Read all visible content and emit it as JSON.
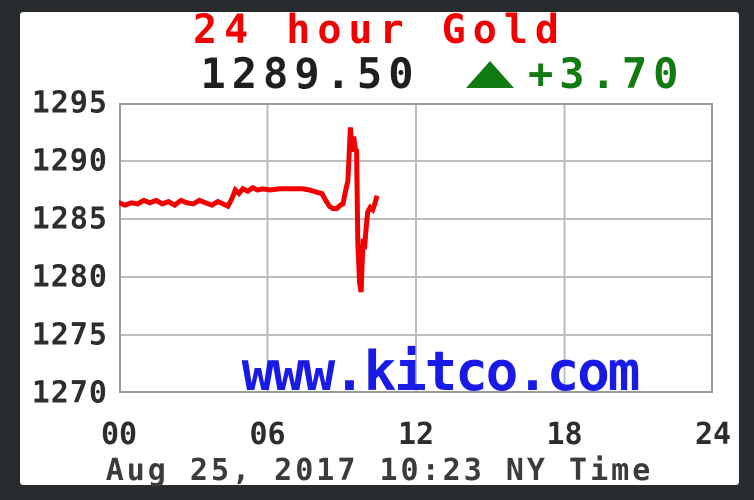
{
  "quote": {
    "price": "1289.50",
    "change": "+3.70",
    "direction": "up"
  },
  "chart_data": {
    "type": "line",
    "title": "24 hour Gold",
    "watermark": "www.kitco.com",
    "footer": "Aug 25, 2017 10:23 NY Time",
    "x_ticks": [
      "00",
      "06",
      "12",
      "18",
      "24"
    ],
    "xlim": [
      0,
      24
    ],
    "y_ticks": [
      1295,
      1290,
      1285,
      1280,
      1275,
      1270
    ],
    "ylim": [
      1270,
      1295
    ],
    "grid": true,
    "legend": "none",
    "series": [
      {
        "name": "gold",
        "x": [
          0,
          0.25,
          0.5,
          0.75,
          1.0,
          1.25,
          1.5,
          1.75,
          2.0,
          2.25,
          2.5,
          2.75,
          3.0,
          3.25,
          3.5,
          3.75,
          4.0,
          4.2,
          4.4,
          4.55,
          4.7,
          4.85,
          5.0,
          5.2,
          5.4,
          5.6,
          5.8,
          6.1,
          6.5,
          7.0,
          7.4,
          7.7,
          8.0,
          8.2,
          8.35,
          8.5,
          8.65,
          8.8,
          8.95,
          9.05,
          9.15,
          9.25,
          9.35,
          9.42,
          9.48,
          9.55,
          9.6,
          9.65,
          9.72,
          9.78,
          9.82,
          9.87,
          9.92,
          9.97,
          10.05,
          10.15,
          10.25,
          10.32,
          10.4
        ],
        "y": [
          1286.4,
          1286.2,
          1286.4,
          1286.3,
          1286.6,
          1286.4,
          1286.6,
          1286.3,
          1286.5,
          1286.2,
          1286.6,
          1286.4,
          1286.3,
          1286.6,
          1286.4,
          1286.2,
          1286.5,
          1286.3,
          1286.1,
          1286.7,
          1287.5,
          1287.2,
          1287.6,
          1287.4,
          1287.7,
          1287.5,
          1287.6,
          1287.5,
          1287.6,
          1287.6,
          1287.6,
          1287.5,
          1287.3,
          1287.2,
          1286.6,
          1286.1,
          1285.9,
          1285.9,
          1286.2,
          1286.3,
          1287.4,
          1288.3,
          1292.9,
          1290.8,
          1292.1,
          1291.0,
          1290.9,
          1283.0,
          1279.5,
          1278.7,
          1281.0,
          1283.3,
          1282.4,
          1283.9,
          1285.6,
          1286.0,
          1285.8,
          1286.2,
          1286.8
        ]
      }
    ]
  },
  "colors": {
    "red": "#f20000",
    "green": "#117a11",
    "blue": "#1a1ae6",
    "panel": "#ffffff",
    "frame_bg": "#282b2e",
    "grid": "#bdbdbd",
    "plot_border": "#9b9b9b",
    "text_dark": "#1f1f1f",
    "axis_text": "#2d2d2d",
    "date_text": "#3b3b3b"
  }
}
